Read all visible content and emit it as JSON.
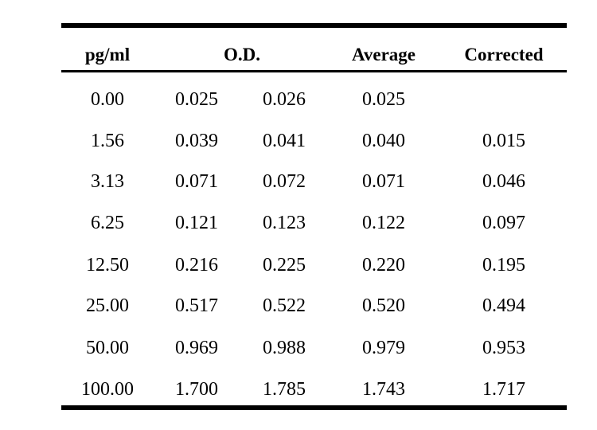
{
  "table": {
    "headers": {
      "concentration": "pg/ml",
      "od": "O.D.",
      "average": "Average",
      "corrected": "Corrected"
    },
    "rows": [
      {
        "concentration": "0.00",
        "od1": "0.025",
        "od2": "0.026",
        "average": "0.025",
        "corrected": ""
      },
      {
        "concentration": "1.56",
        "od1": "0.039",
        "od2": "0.041",
        "average": "0.040",
        "corrected": "0.015"
      },
      {
        "concentration": "3.13",
        "od1": "0.071",
        "od2": "0.072",
        "average": "0.071",
        "corrected": "0.046"
      },
      {
        "concentration": "6.25",
        "od1": "0.121",
        "od2": "0.123",
        "average": "0.122",
        "corrected": "0.097"
      },
      {
        "concentration": "12.50",
        "od1": "0.216",
        "od2": "0.225",
        "average": "0.220",
        "corrected": "0.195"
      },
      {
        "concentration": "25.00",
        "od1": "0.517",
        "od2": "0.522",
        "average": "0.520",
        "corrected": "0.494"
      },
      {
        "concentration": "50.00",
        "od1": "0.969",
        "od2": "0.988",
        "average": "0.979",
        "corrected": "0.953"
      },
      {
        "concentration": "100.00",
        "od1": "1.700",
        "od2": "1.785",
        "average": "1.743",
        "corrected": "1.717"
      }
    ]
  }
}
